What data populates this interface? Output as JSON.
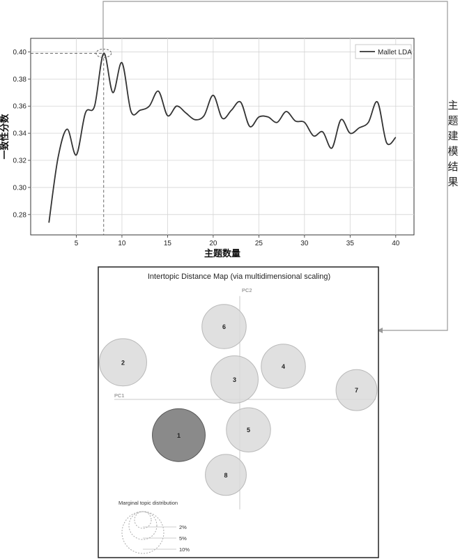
{
  "side_label": "主题建模结果",
  "chart_data": [
    {
      "type": "line",
      "xlabel": "主题数量",
      "ylabel": "一致性分数",
      "xlim": [
        0,
        42
      ],
      "ylim": [
        0.265,
        0.41
      ],
      "x_ticks": [
        5,
        10,
        15,
        20,
        25,
        30,
        35,
        40
      ],
      "y_ticks": [
        "0.28",
        "0.30",
        "0.32",
        "0.34",
        "0.36",
        "0.38",
        "0.40"
      ],
      "grid": true,
      "legend": "top-right",
      "highlight_x": 8,
      "series": [
        {
          "name": "Mallet LDA",
          "x": [
            2,
            3,
            4,
            5,
            6,
            7,
            8,
            9,
            10,
            11,
            12,
            13,
            14,
            15,
            16,
            17,
            18,
            19,
            20,
            21,
            22,
            23,
            24,
            25,
            26,
            27,
            28,
            29,
            30,
            31,
            32,
            33,
            34,
            35,
            36,
            37,
            38,
            39,
            40
          ],
          "values": [
            0.274,
            0.322,
            0.343,
            0.324,
            0.355,
            0.36,
            0.399,
            0.37,
            0.392,
            0.356,
            0.357,
            0.36,
            0.371,
            0.353,
            0.36,
            0.355,
            0.35,
            0.353,
            0.368,
            0.351,
            0.357,
            0.363,
            0.345,
            0.352,
            0.352,
            0.348,
            0.356,
            0.349,
            0.348,
            0.338,
            0.341,
            0.329,
            0.35,
            0.34,
            0.344,
            0.348,
            0.363,
            0.333,
            0.337
          ]
        }
      ]
    },
    {
      "type": "scatter",
      "title": "Intertopic Distance Map (via multidimensional scaling)",
      "axis_labels": {
        "x": "PC1",
        "y": "PC2"
      },
      "topics": [
        {
          "label": "1",
          "x": -0.35,
          "y": -0.27,
          "size": 10,
          "highlighted": true
        },
        {
          "label": "2",
          "x": -0.67,
          "y": 0.28,
          "size": 8
        },
        {
          "label": "3",
          "x": -0.03,
          "y": 0.15,
          "size": 8
        },
        {
          "label": "4",
          "x": 0.25,
          "y": 0.25,
          "size": 7
        },
        {
          "label": "5",
          "x": 0.05,
          "y": -0.23,
          "size": 7
        },
        {
          "label": "6",
          "x": -0.09,
          "y": 0.55,
          "size": 7
        },
        {
          "label": "7",
          "x": 0.67,
          "y": 0.07,
          "size": 6
        },
        {
          "label": "8",
          "x": -0.08,
          "y": -0.57,
          "size": 6
        }
      ],
      "marginal": {
        "title": "Marginal topic distribution",
        "labels": [
          "2%",
          "5%",
          "10%"
        ]
      }
    }
  ]
}
